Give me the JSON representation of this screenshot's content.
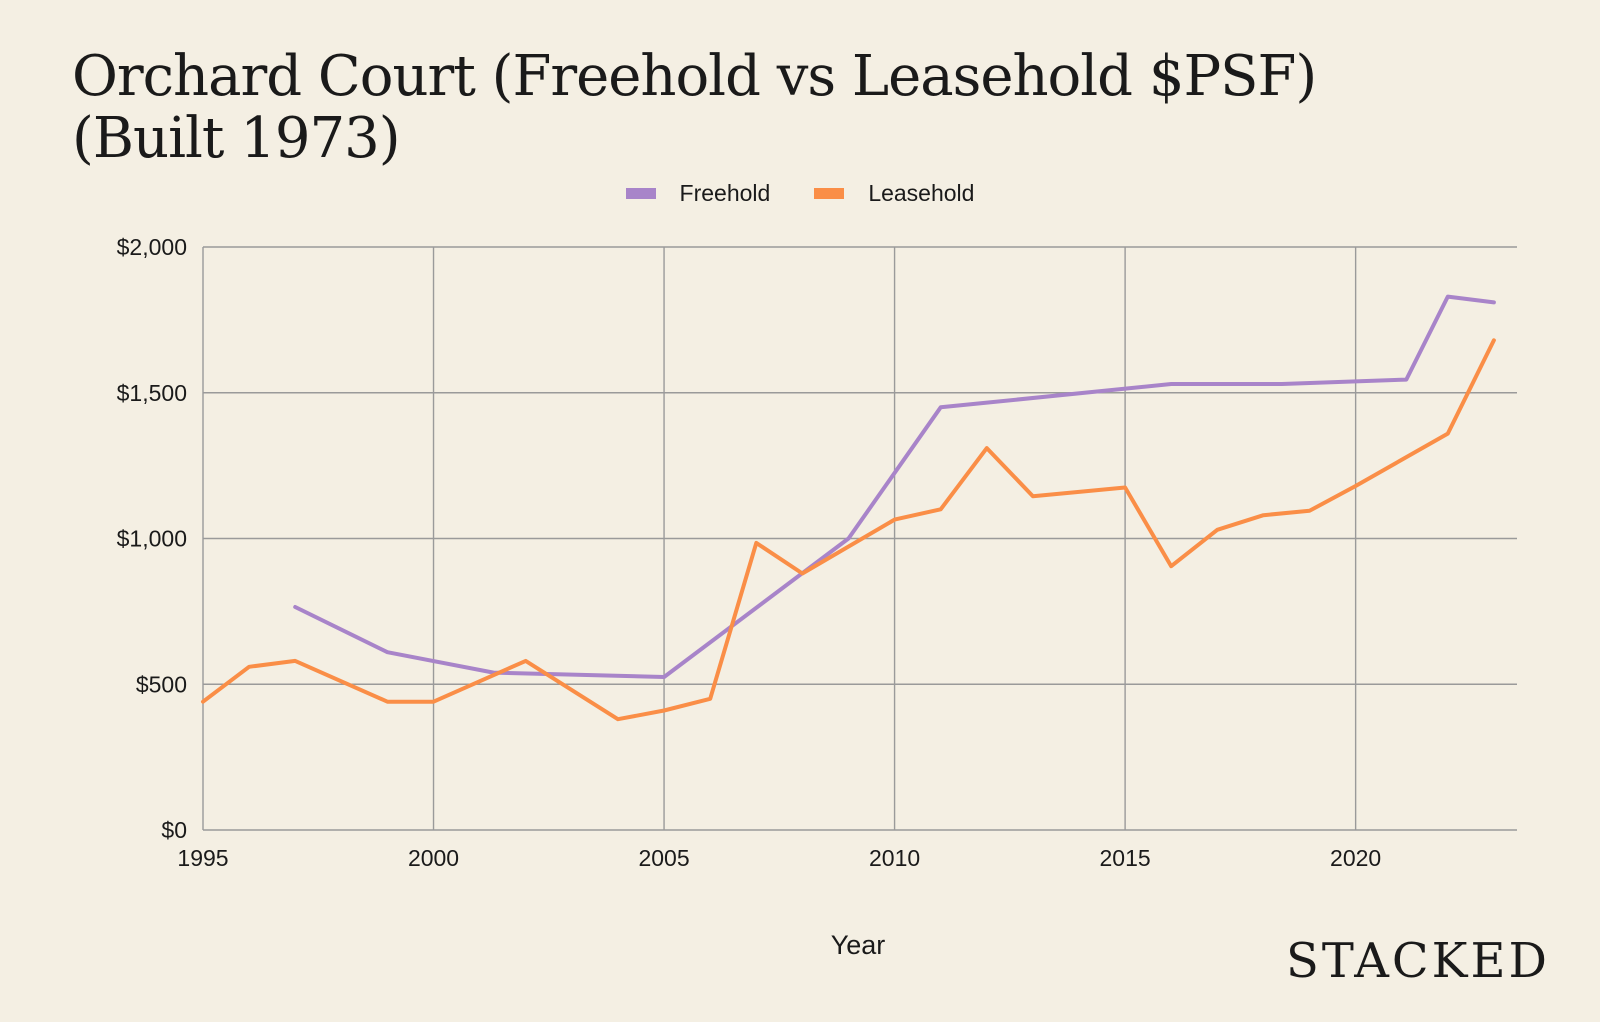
{
  "chart_data": {
    "type": "line",
    "title": "Orchard Court (Freehold vs Leasehold $PSF)",
    "subtitle": "(Built 1973)",
    "xlabel": "Year",
    "ylabel": "",
    "xlim": [
      1995,
      2023.5
    ],
    "ylim": [
      0,
      2000
    ],
    "x_ticks": [
      "1995",
      "2000",
      "2005",
      "2010",
      "2015",
      "2020"
    ],
    "y_ticks": [
      "$0",
      "$500",
      "$1,000",
      "$1,500",
      "$2,000"
    ],
    "grid": true,
    "legend_position": "top-center",
    "series": [
      {
        "name": "Freehold",
        "color": "#a884c9",
        "points": [
          [
            1997,
            765
          ],
          [
            1999,
            610
          ],
          [
            2001.3,
            540
          ],
          [
            2005,
            525
          ],
          [
            2009,
            1000
          ],
          [
            2011,
            1450
          ],
          [
            2016,
            1530
          ],
          [
            2018.4,
            1530
          ],
          [
            2021.1,
            1545
          ],
          [
            2022,
            1830
          ],
          [
            2023,
            1810
          ]
        ]
      },
      {
        "name": "Leasehold",
        "color": "#fa8e47",
        "points": [
          [
            1995,
            440
          ],
          [
            1996,
            560
          ],
          [
            1997,
            580
          ],
          [
            1999,
            440
          ],
          [
            2000,
            440
          ],
          [
            2002,
            580
          ],
          [
            2004,
            380
          ],
          [
            2005,
            410
          ],
          [
            2006,
            450
          ],
          [
            2007,
            985
          ],
          [
            2008,
            880
          ],
          [
            2010,
            1065
          ],
          [
            2011,
            1100
          ],
          [
            2012,
            1310
          ],
          [
            2013,
            1145
          ],
          [
            2015,
            1175
          ],
          [
            2016,
            905
          ],
          [
            2017,
            1030
          ],
          [
            2018,
            1080
          ],
          [
            2019,
            1095
          ],
          [
            2020,
            1180
          ],
          [
            2022,
            1360
          ],
          [
            2023,
            1680
          ]
        ]
      }
    ]
  },
  "brand": "STACKED"
}
